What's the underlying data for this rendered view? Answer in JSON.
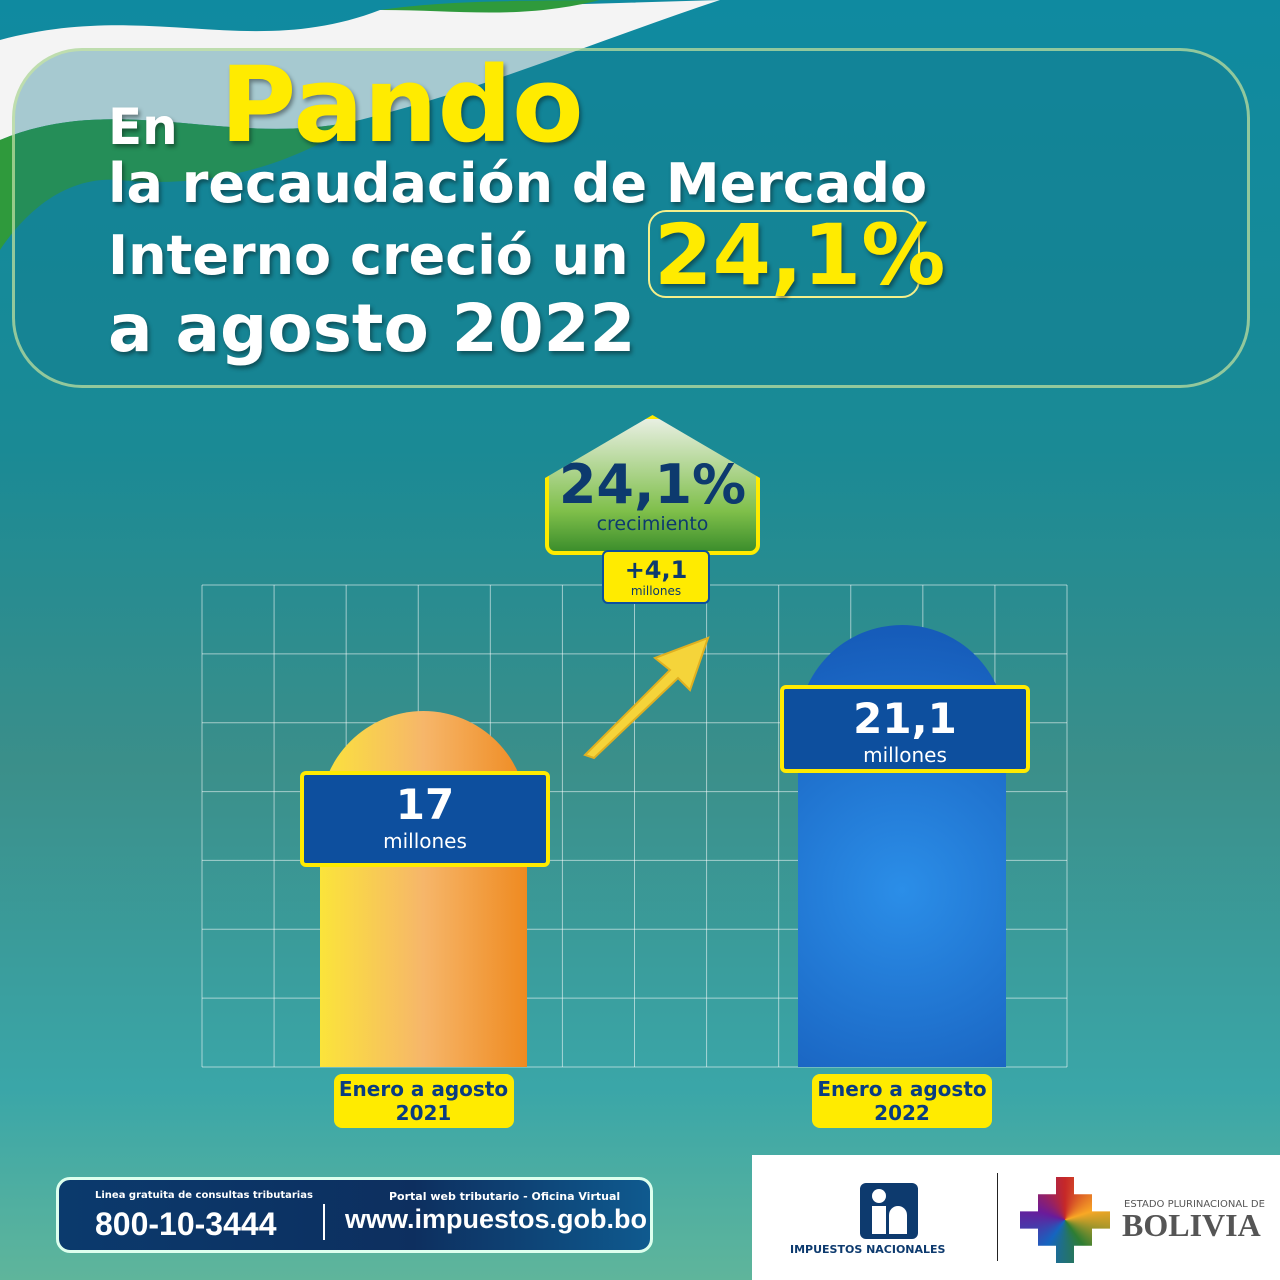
{
  "headline": {
    "line1_prefix": "En",
    "line1_highlight": "Pando",
    "line2": "la recaudación de Mercado",
    "line3": "Interno creció un",
    "line3_highlight": "24,1%",
    "line4": "a agosto 2022"
  },
  "badge": {
    "percent": "24,1%",
    "label": "crecimiento",
    "delta": "+4,1",
    "delta_unit": "millones"
  },
  "chart_data": {
    "type": "bar",
    "categories": [
      "Enero a agosto 2021",
      "Enero a agosto 2022"
    ],
    "category_lines": [
      [
        "Enero a agosto",
        "2021"
      ],
      [
        "Enero a agosto",
        "2022"
      ]
    ],
    "values": [
      17,
      21.1
    ],
    "value_labels": [
      "17",
      "21,1"
    ],
    "unit_label": "millones",
    "ylim": [
      0,
      23
    ],
    "grid": true,
    "colors": [
      "#f39a2a",
      "#1565c0"
    ]
  },
  "footer": {
    "hotline_label": "Linea gratuita de consultas tributarias",
    "hotline": "800-10-3444",
    "portal_label": "Portal web tributario - Oficina Virtual",
    "portal": "www.impuestos.gob.bo"
  },
  "logos": {
    "impuestos": "IMPUESTOS NACIONALES",
    "bolivia_top": "ESTADO PLURINACIONAL DE",
    "bolivia": "BOLIVIA"
  }
}
